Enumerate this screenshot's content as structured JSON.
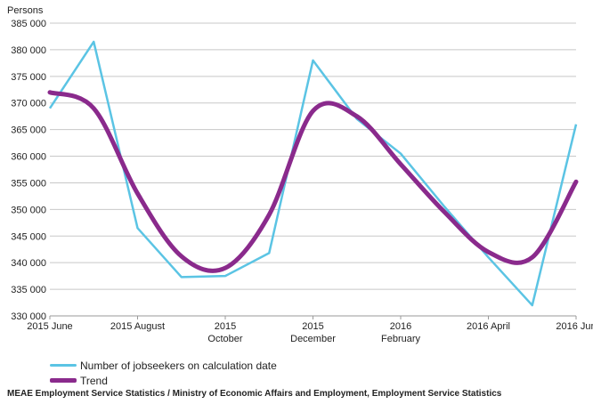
{
  "chart_data": {
    "type": "line",
    "ylabel": "Persons",
    "ylim": [
      330000,
      385000
    ],
    "yticks": [
      330000,
      335000,
      340000,
      345000,
      350000,
      355000,
      360000,
      365000,
      370000,
      375000,
      380000,
      385000
    ],
    "ytick_labels": [
      "330 000",
      "335 000",
      "340 000",
      "345 000",
      "350 000",
      "355 000",
      "360 000",
      "365 000",
      "370 000",
      "375 000",
      "380 000",
      "385 000"
    ],
    "x": [
      "2015 Jun",
      "2015 Jul",
      "2015 Aug",
      "2015 Sep",
      "2015 Oct",
      "2015 Nov",
      "2015 Dec",
      "2016 Jan",
      "2016 Feb",
      "2016 Mar",
      "2016 Apr",
      "2016 May",
      "2016 Jun"
    ],
    "xtick_labels": [
      {
        "index": 0,
        "lines": [
          "2015 June"
        ]
      },
      {
        "index": 2,
        "lines": [
          "2015 August"
        ]
      },
      {
        "index": 4,
        "lines": [
          "2015",
          "October"
        ]
      },
      {
        "index": 6,
        "lines": [
          "2015",
          "December"
        ]
      },
      {
        "index": 8,
        "lines": [
          "2016",
          "February"
        ]
      },
      {
        "index": 10,
        "lines": [
          "2016 April"
        ]
      },
      {
        "index": 12,
        "lines": [
          "2016 Jun"
        ]
      }
    ],
    "series": [
      {
        "name": "Number of jobseekers on calculation date",
        "color": "#5bc4e4",
        "values": [
          369000,
          381500,
          346500,
          337300,
          337500,
          341800,
          378000,
          367000,
          360500,
          350500,
          341000,
          332000,
          366000
        ]
      },
      {
        "name": "Trend",
        "color": "#8a2a8c",
        "values": [
          372000,
          369000,
          353000,
          341200,
          339000,
          349000,
          368500,
          367500,
          358500,
          349500,
          342000,
          341000,
          355200
        ]
      }
    ],
    "grid": true,
    "legend_position": "bottom-left"
  },
  "source": "MEAE Employment Service Statistics / Ministry of Economic Affairs and Employment, Employment Service Statistics"
}
